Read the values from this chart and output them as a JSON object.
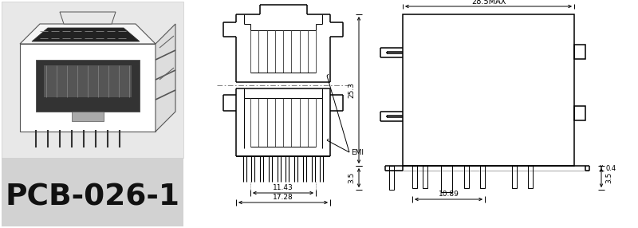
{
  "title": "PCB-026-1",
  "dims": {
    "width_max": "28.5MAX",
    "height": "25.3",
    "bottom_left": "3.5",
    "bottom_right": "3.5",
    "inner_width": "10.89",
    "thickness": "0.4",
    "front_width1": "11.43",
    "front_width2": "17.28",
    "emi_label": "EMI"
  },
  "photo_bg": "#e8e8e8",
  "label_bg": "#d0d0d0",
  "white": "#ffffff",
  "black": "#000000",
  "gray_line": "#aaaaaa"
}
